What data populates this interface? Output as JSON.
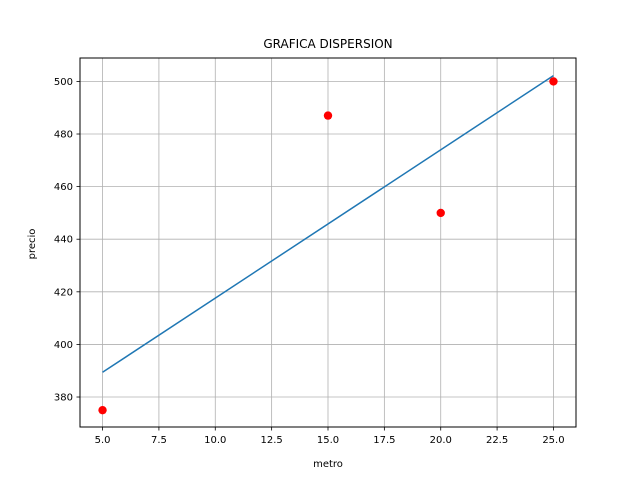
{
  "chart_data": {
    "type": "scatter",
    "title": "GRAFICA DISPERSION",
    "xlabel": "metro",
    "ylabel": "precio",
    "xlim": [
      4.0,
      26.0
    ],
    "ylim": [
      368.6,
      508.9
    ],
    "xticks": [
      5.0,
      7.5,
      10.0,
      12.5,
      15.0,
      17.5,
      20.0,
      22.5,
      25.0
    ],
    "xtick_labels": [
      "5.0",
      "7.5",
      "10.0",
      "12.5",
      "15.0",
      "17.5",
      "20.0",
      "22.5",
      "25.0"
    ],
    "yticks": [
      380,
      400,
      420,
      440,
      460,
      480,
      500
    ],
    "ytick_labels": [
      "380",
      "400",
      "420",
      "440",
      "460",
      "480",
      "500"
    ],
    "grid": true,
    "points": [
      {
        "x": 5,
        "y": 375
      },
      {
        "x": 15,
        "y": 487
      },
      {
        "x": 20,
        "y": 450
      },
      {
        "x": 25,
        "y": 500
      }
    ],
    "fit_line": [
      {
        "x": 5,
        "y": 389.4
      },
      {
        "x": 25,
        "y": 502.2
      }
    ],
    "colors": {
      "points": "#ff0000",
      "line": "#1f77b4",
      "grid": "#b0b0b0"
    }
  }
}
